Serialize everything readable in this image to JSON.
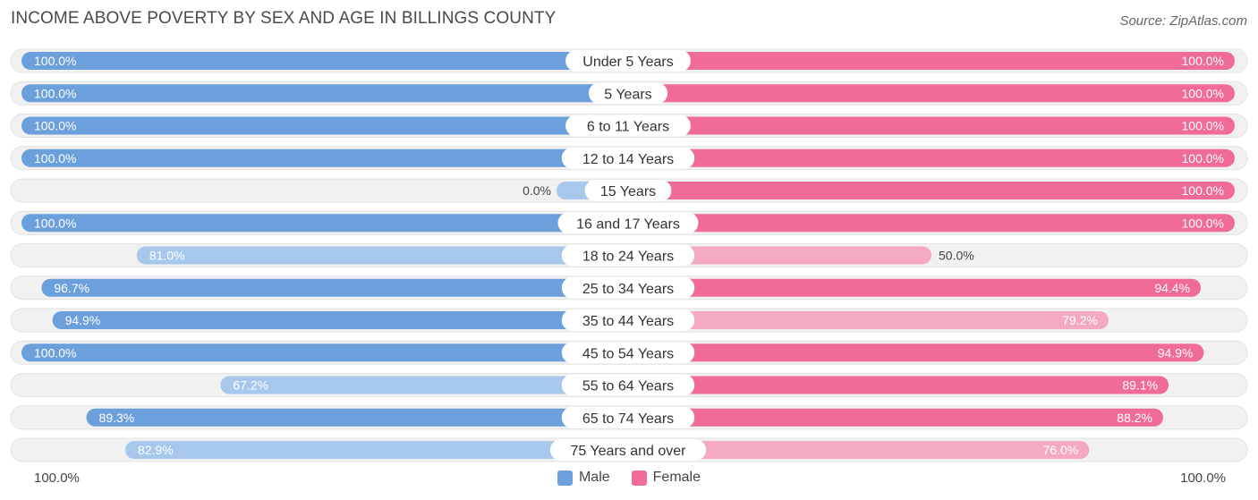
{
  "title": "INCOME ABOVE POVERTY BY SEX AND AGE IN BILLINGS COUNTY",
  "source": "Source: ZipAtlas.com",
  "colors": {
    "male": "#6ca0dc",
    "male_light": "#a7c8ec",
    "female": "#f06b96",
    "female_light": "#f5a8c1",
    "track": "#f1f1f1"
  },
  "axis": {
    "left_label": "100.0%",
    "right_label": "100.0%"
  },
  "legend": {
    "male": "Male",
    "female": "Female"
  },
  "chart_data": {
    "type": "bar",
    "orientation": "horizontal-butterfly",
    "title": "INCOME ABOVE POVERTY BY SEX AND AGE IN BILLINGS COUNTY",
    "xlim": [
      0,
      100
    ],
    "unit": "%",
    "categories": [
      "Under 5 Years",
      "5 Years",
      "6 to 11 Years",
      "12 to 14 Years",
      "15 Years",
      "16 and 17 Years",
      "18 to 24 Years",
      "25 to 34 Years",
      "35 to 44 Years",
      "45 to 54 Years",
      "55 to 64 Years",
      "65 to 74 Years",
      "75 Years and over"
    ],
    "series": [
      {
        "name": "Male",
        "values": [
          100.0,
          100.0,
          100.0,
          100.0,
          0.0,
          100.0,
          81.0,
          96.7,
          94.9,
          100.0,
          67.2,
          89.3,
          82.9
        ],
        "labels": [
          "100.0%",
          "100.0%",
          "100.0%",
          "100.0%",
          "0.0%",
          "100.0%",
          "81.0%",
          "96.7%",
          "94.9%",
          "100.0%",
          "67.2%",
          "89.3%",
          "82.9%"
        ]
      },
      {
        "name": "Female",
        "values": [
          100.0,
          100.0,
          100.0,
          100.0,
          100.0,
          100.0,
          50.0,
          94.4,
          79.2,
          94.9,
          89.1,
          88.2,
          76.0
        ],
        "labels": [
          "100.0%",
          "100.0%",
          "100.0%",
          "100.0%",
          "100.0%",
          "100.0%",
          "50.0%",
          "94.4%",
          "79.2%",
          "94.9%",
          "89.1%",
          "88.2%",
          "76.0%"
        ]
      }
    ]
  }
}
